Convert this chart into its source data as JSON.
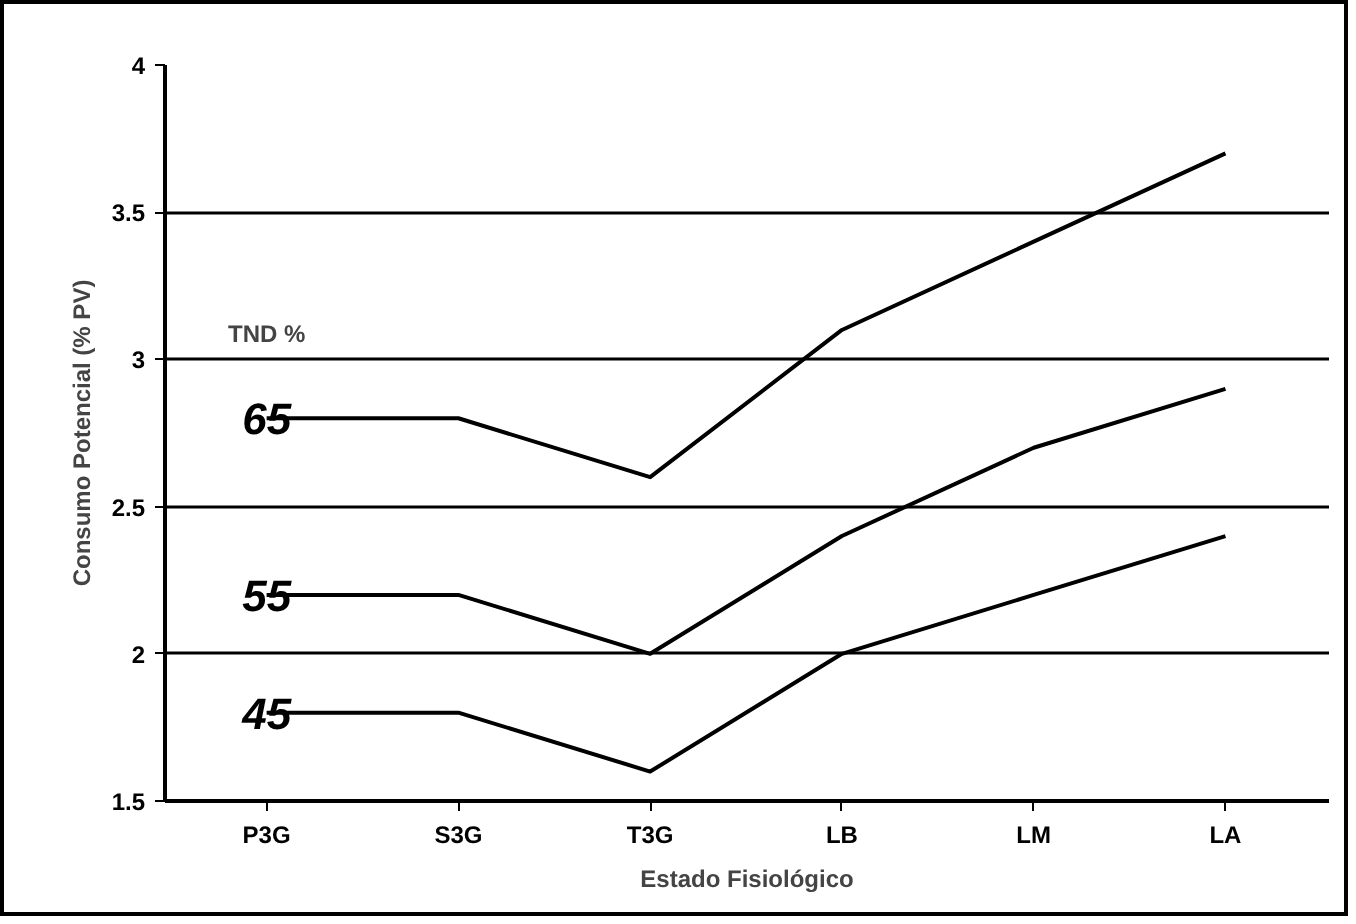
{
  "chart_data": {
    "type": "line",
    "xlabel": "Estado Fisiológico",
    "ylabel": "Consumo Potencial (% PV)",
    "legend_title": "TND %",
    "categories": [
      "P3G",
      "S3G",
      "T3G",
      "LB",
      "LM",
      "LA"
    ],
    "series": [
      {
        "name": "65",
        "color": "#000000",
        "values": [
          2.8,
          2.8,
          2.6,
          3.1,
          3.4,
          3.7
        ]
      },
      {
        "name": "55",
        "color": "#000000",
        "values": [
          2.2,
          2.2,
          2.0,
          2.4,
          2.7,
          2.9
        ]
      },
      {
        "name": "45",
        "color": "#000000",
        "values": [
          1.8,
          1.8,
          1.6,
          2.0,
          2.2,
          2.4
        ]
      }
    ],
    "ylim": [
      1.5,
      4
    ],
    "yticks": [
      1.5,
      2,
      2.5,
      3,
      3.5,
      4
    ],
    "grid": "y",
    "legend": false,
    "marker": "none",
    "line_style": "solid"
  }
}
